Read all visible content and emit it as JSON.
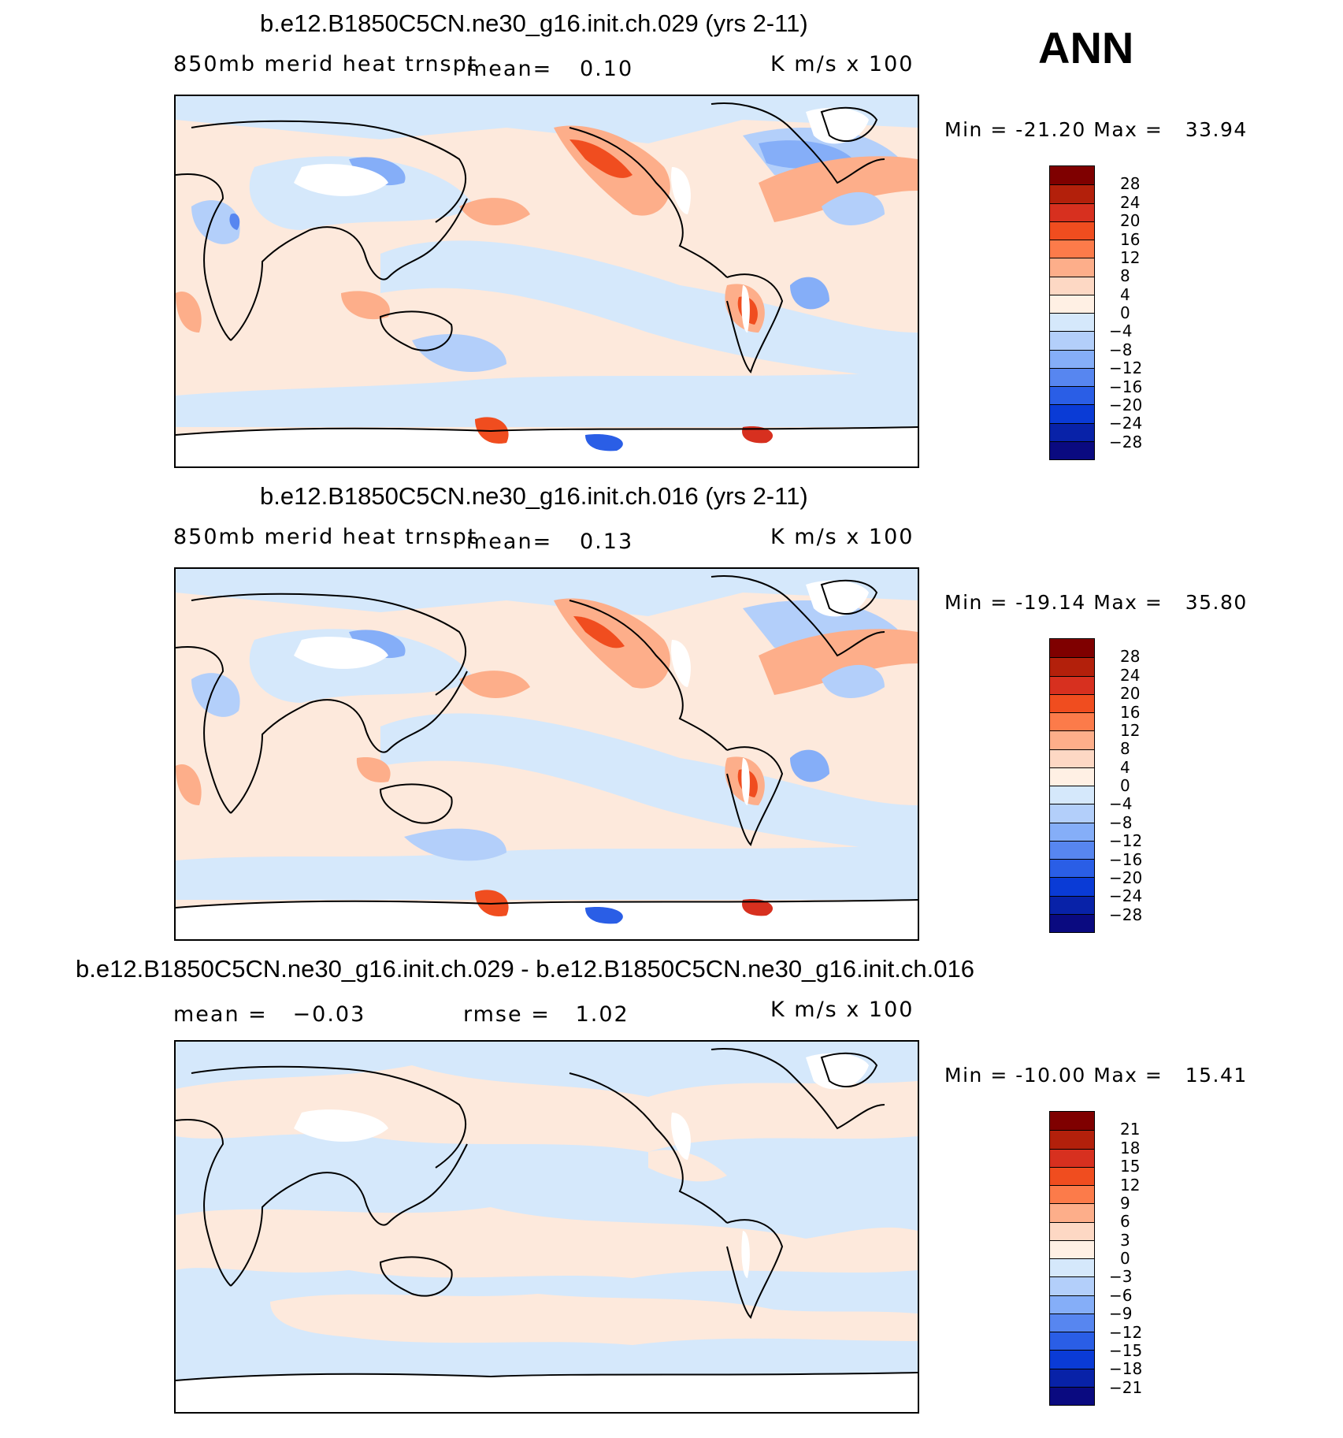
{
  "season": "ANN",
  "panels": [
    {
      "id": "p1",
      "title": "b.e12.B1850C5CN.ne30_g16.init.ch.029 (yrs 2-11)",
      "variable": "850mb merid heat trnspt",
      "stat_label": "mean=",
      "stat_value": "0.10",
      "units": "K m/s x 100",
      "min_label": "Min",
      "min_value": "-21.20",
      "max_label": "Max",
      "max_value": "33.94",
      "colorbar": {
        "labels": [
          "28",
          "24",
          "20",
          "16",
          "12",
          "8",
          "4",
          "0",
          "−4",
          "−8",
          "−12",
          "−16",
          "−20",
          "−24",
          "−28"
        ],
        "colors": [
          "#7f0000",
          "#b3200b",
          "#d7301f",
          "#f04d1f",
          "#fc7b4a",
          "#fdae8a",
          "#fdd8c4",
          "#fff0e4",
          "#d5e8fb",
          "#b3cffa",
          "#85aef8",
          "#5786f0",
          "#2a5ee6",
          "#0a3bd6",
          "#0822a8",
          "#0a0a80"
        ]
      }
    },
    {
      "id": "p2",
      "title": "b.e12.B1850C5CN.ne30_g16.init.ch.016 (yrs 2-11)",
      "variable": "850mb merid heat trnspt",
      "stat_label": "mean=",
      "stat_value": "0.13",
      "units": "K m/s x 100",
      "min_label": "Min",
      "min_value": "-19.14",
      "max_label": "Max",
      "max_value": "35.80",
      "colorbar": {
        "labels": [
          "28",
          "24",
          "20",
          "16",
          "12",
          "8",
          "4",
          "0",
          "−4",
          "−8",
          "−12",
          "−16",
          "−20",
          "−24",
          "−28"
        ],
        "colors": [
          "#7f0000",
          "#b3200b",
          "#d7301f",
          "#f04d1f",
          "#fc7b4a",
          "#fdae8a",
          "#fdd8c4",
          "#fff0e4",
          "#d5e8fb",
          "#b3cffa",
          "#85aef8",
          "#5786f0",
          "#2a5ee6",
          "#0a3bd6",
          "#0822a8",
          "#0a0a80"
        ]
      }
    },
    {
      "id": "p3",
      "title": "b.e12.B1850C5CN.ne30_g16.init.ch.029 - b.e12.B1850C5CN.ne30_g16.init.ch.016",
      "mean_label": "mean =",
      "mean_value": "−0.03",
      "rmse_label": "rmse =",
      "rmse_value": "1.02",
      "units": "K m/s x 100",
      "min_label": "Min",
      "min_value": "-10.00",
      "max_label": "Max",
      "max_value": "15.41",
      "colorbar": {
        "labels": [
          "21",
          "18",
          "15",
          "12",
          "9",
          "6",
          "3",
          "0",
          "−3",
          "−6",
          "−9",
          "−12",
          "−15",
          "−18",
          "−21"
        ],
        "colors": [
          "#7f0000",
          "#b3200b",
          "#d7301f",
          "#f04d1f",
          "#fc7b4a",
          "#fdae8a",
          "#fdd8c4",
          "#fff0e4",
          "#d5e8fb",
          "#b3cffa",
          "#85aef8",
          "#5786f0",
          "#2a5ee6",
          "#0a3bd6",
          "#0822a8",
          "#0a0a80"
        ]
      }
    }
  ],
  "colors": {
    "warm_light": "#fde9dc",
    "warm_mid": "#fdae8a",
    "warm_strong": "#f04d1f",
    "cool_light": "#d5e8fb",
    "cool_mid": "#85aef8",
    "cool_strong": "#2a5ee6",
    "missing": "#ffffff",
    "coast": "#000000"
  }
}
